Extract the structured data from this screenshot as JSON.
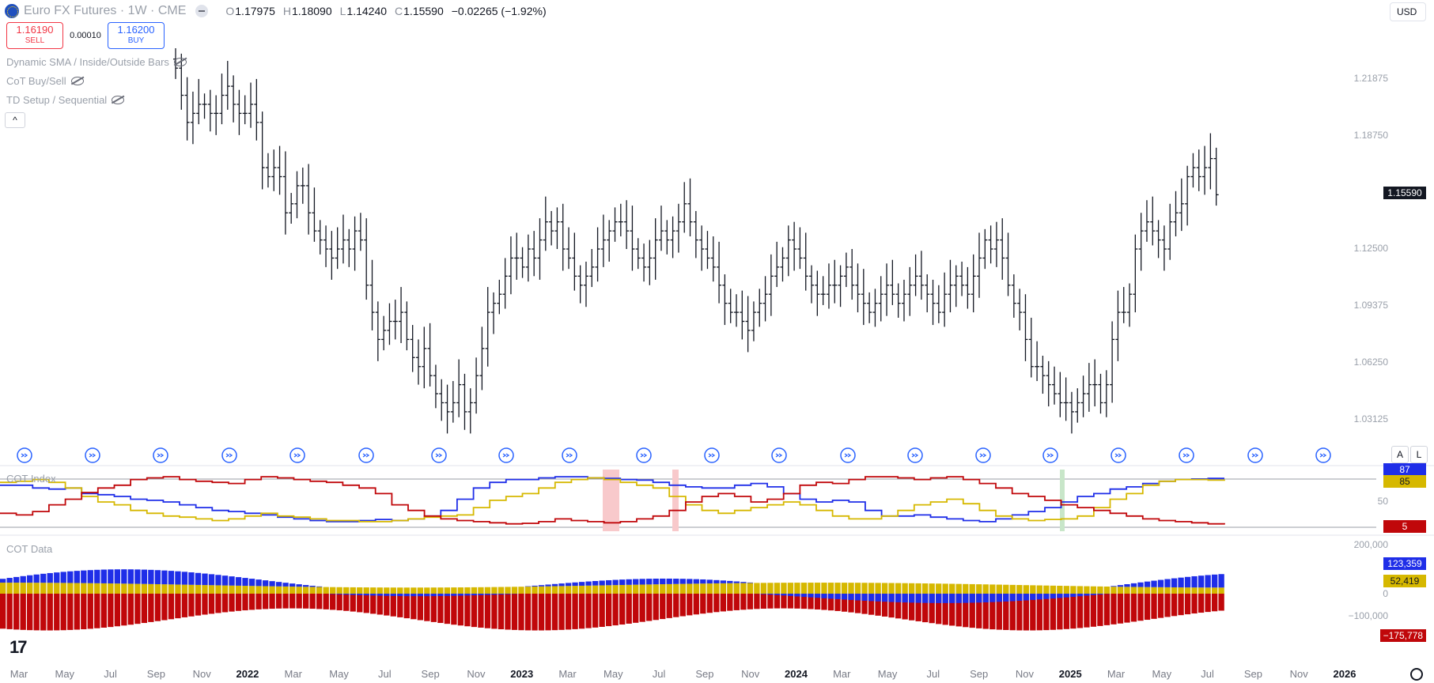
{
  "header": {
    "symbol": "Euro FX Futures · 1W · CME",
    "ohlc": [
      {
        "k": "O",
        "v": "1.17975"
      },
      {
        "k": "H",
        "v": "1.18090"
      },
      {
        "k": "L",
        "v": "1.14240"
      },
      {
        "k": "C",
        "v": "1.15590"
      }
    ],
    "change": "−0.02265 (−1.92%)"
  },
  "trade": {
    "sell_price": "1.16190",
    "sell_label": "SELL",
    "spread": "0.00010",
    "buy_price": "1.16200",
    "buy_label": "BUY"
  },
  "indicators": [
    "Dynamic SMA / Inside/Outside Bars",
    "CoT Buy/Sell",
    "TD Setup / Sequential"
  ],
  "currency": "USD",
  "price_axis": {
    "labels": [
      "1.21875",
      "1.18750",
      "1.15590",
      "1.12500",
      "1.09375",
      "1.06250",
      "1.03125"
    ],
    "last_price": "1.15590"
  },
  "cot_index": {
    "label": "COT Index",
    "axis_mid": "50",
    "tags": {
      "blue": "87",
      "yellow": "85",
      "red": "5"
    }
  },
  "cot_data": {
    "label": "COT Data",
    "axis": [
      "200,000",
      "0",
      "−100,000"
    ],
    "tags": {
      "blue": "123,359",
      "yellow": "52,419",
      "red": "−175,778"
    }
  },
  "time_axis": [
    {
      "t": "Mar",
      "yr": false
    },
    {
      "t": "May",
      "yr": false
    },
    {
      "t": "Jul",
      "yr": false
    },
    {
      "t": "Sep",
      "yr": false
    },
    {
      "t": "Nov",
      "yr": false
    },
    {
      "t": "2022",
      "yr": true
    },
    {
      "t": "Mar",
      "yr": false
    },
    {
      "t": "May",
      "yr": false
    },
    {
      "t": "Jul",
      "yr": false
    },
    {
      "t": "Sep",
      "yr": false
    },
    {
      "t": "Nov",
      "yr": false
    },
    {
      "t": "2023",
      "yr": true
    },
    {
      "t": "Mar",
      "yr": false
    },
    {
      "t": "May",
      "yr": false
    },
    {
      "t": "Jul",
      "yr": false
    },
    {
      "t": "Sep",
      "yr": false
    },
    {
      "t": "Nov",
      "yr": false
    },
    {
      "t": "2024",
      "yr": true
    },
    {
      "t": "Mar",
      "yr": false
    },
    {
      "t": "May",
      "yr": false
    },
    {
      "t": "Jul",
      "yr": false
    },
    {
      "t": "Sep",
      "yr": false
    },
    {
      "t": "Nov",
      "yr": false
    },
    {
      "t": "2025",
      "yr": true
    },
    {
      "t": "Mar",
      "yr": false
    },
    {
      "t": "May",
      "yr": false
    },
    {
      "t": "Jul",
      "yr": false
    },
    {
      "t": "Sep",
      "yr": false
    },
    {
      "t": "Nov",
      "yr": false
    },
    {
      "t": "2026",
      "yr": true
    }
  ],
  "buttons": {
    "auto": "A",
    "log": "L"
  },
  "logo": "17",
  "colors": {
    "up": "#131722",
    "blue": "#1f2ee8",
    "yellow": "#d6b800",
    "red": "#c0070a",
    "sell": "#f23645",
    "buy": "#2962ff"
  },
  "chart_data": {
    "type": "bar",
    "title": "",
    "price_series_close": [
      1.225,
      1.21,
      1.195,
      1.2,
      1.205,
      1.205,
      1.2,
      1.2,
      1.21,
      1.215,
      1.205,
      1.2,
      1.2,
      1.205,
      1.195,
      1.17,
      1.165,
      1.17,
      1.165,
      1.145,
      1.15,
      1.16,
      1.16,
      1.145,
      1.135,
      1.13,
      1.125,
      1.12,
      1.125,
      1.13,
      1.125,
      1.135,
      1.13,
      1.105,
      1.09,
      1.075,
      1.08,
      1.085,
      1.085,
      1.09,
      1.075,
      1.065,
      1.06,
      1.07,
      1.055,
      1.045,
      1.04,
      1.035,
      1.04,
      1.05,
      1.035,
      1.04,
      1.055,
      1.07,
      1.09,
      1.095,
      1.1,
      1.11,
      1.12,
      1.12,
      1.115,
      1.125,
      1.12,
      1.13,
      1.14,
      1.135,
      1.14,
      1.125,
      1.12,
      1.11,
      1.105,
      1.11,
      1.115,
      1.125,
      1.13,
      1.135,
      1.14,
      1.14,
      1.135,
      1.125,
      1.12,
      1.115,
      1.12,
      1.13,
      1.135,
      1.13,
      1.135,
      1.14,
      1.15,
      1.14,
      1.13,
      1.125,
      1.12,
      1.115,
      1.105,
      1.095,
      1.09,
      1.09,
      1.085,
      1.08,
      1.09,
      1.095,
      1.1,
      1.11,
      1.115,
      1.12,
      1.13,
      1.125,
      1.12,
      1.11,
      1.105,
      1.1,
      1.1,
      1.105,
      1.105,
      1.11,
      1.115,
      1.105,
      1.1,
      1.095,
      1.09,
      1.095,
      1.1,
      1.105,
      1.1,
      1.095,
      1.1,
      1.105,
      1.11,
      1.105,
      1.1,
      1.095,
      1.09,
      1.1,
      1.105,
      1.11,
      1.105,
      1.1,
      1.11,
      1.12,
      1.13,
      1.125,
      1.13,
      1.12,
      1.105,
      1.095,
      1.09,
      1.075,
      1.06,
      1.06,
      1.055,
      1.05,
      1.045,
      1.04,
      1.04,
      1.035,
      1.04,
      1.045,
      1.05,
      1.05,
      1.04,
      1.05,
      1.075,
      1.09,
      1.09,
      1.1,
      1.125,
      1.135,
      1.14,
      1.135,
      1.13,
      1.125,
      1.14,
      1.145,
      1.15,
      1.165,
      1.17,
      1.165,
      1.17,
      1.175,
      1.155
    ],
    "cot_index": {
      "blue": [
        75,
        75,
        70,
        68,
        70,
        60,
        58,
        55,
        50,
        48,
        45,
        40,
        35,
        30,
        28,
        25,
        22,
        18,
        15,
        12,
        10,
        10,
        12,
        14,
        12,
        15,
        20,
        30,
        50,
        70,
        80,
        85,
        85,
        88,
        90,
        90,
        88,
        87,
        85,
        84,
        80,
        75,
        72,
        70,
        70,
        75,
        78,
        72,
        60,
        50,
        45,
        48,
        45,
        30,
        20,
        20,
        22,
        18,
        15,
        12,
        10,
        15,
        22,
        28,
        35,
        45,
        55,
        60,
        68,
        72,
        78,
        82,
        85,
        86,
        87,
        87
      ],
      "yellow": [
        80,
        82,
        85,
        80,
        70,
        55,
        45,
        40,
        30,
        25,
        20,
        18,
        15,
        12,
        15,
        20,
        25,
        20,
        18,
        15,
        12,
        12,
        10,
        10,
        12,
        15,
        18,
        20,
        22,
        35,
        48,
        55,
        60,
        70,
        80,
        85,
        88,
        85,
        80,
        75,
        70,
        55,
        40,
        30,
        25,
        30,
        35,
        40,
        45,
        40,
        30,
        20,
        15,
        15,
        20,
        30,
        40,
        45,
        50,
        42,
        30,
        20,
        15,
        12,
        14,
        15,
        20,
        35,
        50,
        60,
        75,
        82,
        85,
        85,
        84,
        85
      ],
      "red": [
        25,
        22,
        28,
        40,
        50,
        62,
        70,
        75,
        85,
        88,
        90,
        85,
        82,
        80,
        78,
        85,
        90,
        88,
        85,
        82,
        80,
        75,
        70,
        60,
        40,
        30,
        20,
        15,
        12,
        10,
        8,
        6,
        7,
        10,
        15,
        12,
        10,
        8,
        10,
        15,
        20,
        30,
        45,
        55,
        60,
        55,
        45,
        50,
        60,
        75,
        80,
        78,
        85,
        90,
        90,
        88,
        85,
        88,
        90,
        85,
        78,
        70,
        60,
        55,
        48,
        40,
        35,
        30,
        25,
        20,
        15,
        12,
        10,
        8,
        6,
        5
      ]
    },
    "cot_data": {
      "blue": [
        123359
      ],
      "yellow": [
        52419
      ],
      "red": [
        -175778
      ]
    }
  }
}
